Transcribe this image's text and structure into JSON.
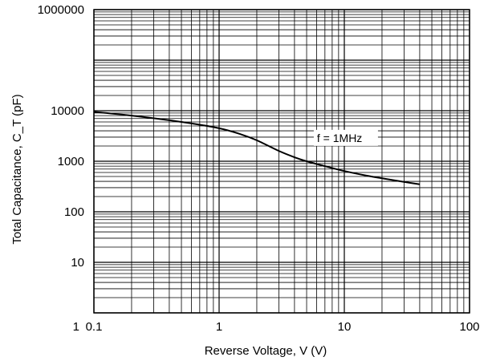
{
  "chart_data": {
    "type": "line",
    "title": "",
    "xlabel": "Reverse Voltage, V  (V)",
    "ylabel": "Total Capacitance, C_T (pF)",
    "xscale": "log",
    "yscale": "log",
    "xlim": [
      0.1,
      100
    ],
    "ylim": [
      1,
      1000000
    ],
    "grid": true,
    "x_tick_labels": [
      "0.1",
      "1",
      "10",
      "100"
    ],
    "y_tick_labels": [
      "1",
      "10",
      "100",
      "1000",
      "10000",
      "1000000"
    ],
    "annotation": "f = 1MHz",
    "series": [
      {
        "x": [
          0.1,
          0.2,
          0.5,
          1,
          1.5,
          2,
          3,
          4,
          5,
          7,
          10,
          15,
          20,
          30,
          40
        ],
        "y": [
          9500,
          8000,
          6000,
          4500,
          3400,
          2600,
          1600,
          1200,
          1000,
          800,
          640,
          520,
          460,
          390,
          350
        ]
      }
    ]
  }
}
